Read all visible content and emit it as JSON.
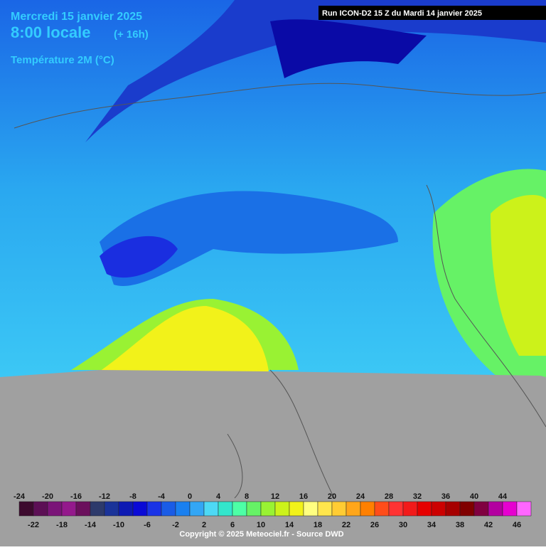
{
  "header": {
    "date": "Mercredi 15 janvier 2025",
    "time": "8:00 locale",
    "offset": "(+ 16h)",
    "variable": "Température 2M (°C)"
  },
  "run": "Run ICON-D2 15 Z du Mardi 14 janvier 2025",
  "legend": {
    "items": [
      {
        "value": -24,
        "color": "#3d0a2e"
      },
      {
        "value": -22,
        "color": "#5c0f55"
      },
      {
        "value": -20,
        "color": "#7a1478"
      },
      {
        "value": -18,
        "color": "#94198c"
      },
      {
        "value": -16,
        "color": "#6b0f5c"
      },
      {
        "value": -14,
        "color": "#2d3a6b"
      },
      {
        "value": -12,
        "color": "#1a3399"
      },
      {
        "value": -10,
        "color": "#0d1ab3"
      },
      {
        "value": -8,
        "color": "#0a0ad6"
      },
      {
        "value": -6,
        "color": "#1a33e6"
      },
      {
        "value": -4,
        "color": "#1a5ce6"
      },
      {
        "value": -2,
        "color": "#1a80f0"
      },
      {
        "value": 0,
        "color": "#33a6f5"
      },
      {
        "value": 2,
        "color": "#4dd9f5"
      },
      {
        "value": 4,
        "color": "#33e6cc"
      },
      {
        "value": 6,
        "color": "#4dffa6"
      },
      {
        "value": 8,
        "color": "#66f266"
      },
      {
        "value": 10,
        "color": "#99f233"
      },
      {
        "value": 12,
        "color": "#ccf21a"
      },
      {
        "value": 14,
        "color": "#f2f21a"
      },
      {
        "value": 16,
        "color": "#ffff80"
      },
      {
        "value": 18,
        "color": "#ffe64d"
      },
      {
        "value": 20,
        "color": "#ffcc33"
      },
      {
        "value": 22,
        "color": "#ffa61a"
      },
      {
        "value": 24,
        "color": "#ff8000"
      },
      {
        "value": 26,
        "color": "#ff4d1a"
      },
      {
        "value": 28,
        "color": "#ff3333"
      },
      {
        "value": 30,
        "color": "#f21a1a"
      },
      {
        "value": 32,
        "color": "#e60000"
      },
      {
        "value": 34,
        "color": "#cc0000"
      },
      {
        "value": 36,
        "color": "#a60000"
      },
      {
        "value": 38,
        "color": "#800000"
      },
      {
        "value": 40,
        "color": "#800040"
      },
      {
        "value": 42,
        "color": "#b300a0"
      },
      {
        "value": 44,
        "color": "#e600d0"
      },
      {
        "value": 46,
        "color": "#ff66ff"
      }
    ]
  },
  "copyright": "Copyright © 2025 Meteociel.fr - Source DWD"
}
